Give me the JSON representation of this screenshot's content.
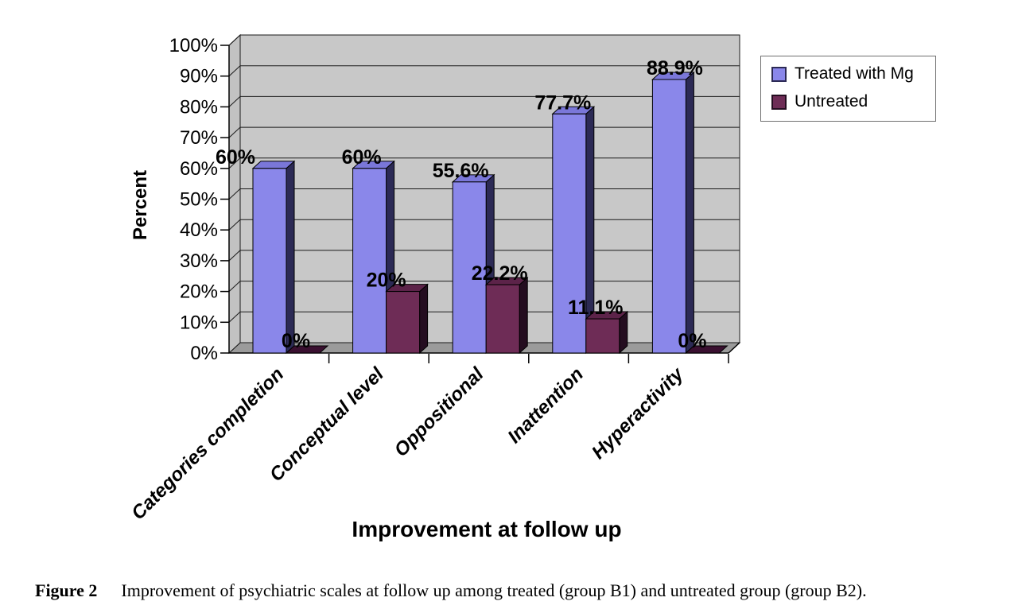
{
  "figure_caption": {
    "label": "Figure 2",
    "text": "Improvement of psychiatric scales at follow up among treated (group B1) and untreated group (group B2)."
  },
  "chart_data": {
    "type": "bar",
    "style_3d": true,
    "title": "",
    "xlabel": "Improvement at follow up",
    "ylabel": "Percent",
    "categories": [
      "Categories completion",
      "Conceptual level",
      "Oppositional",
      "Inattention",
      "Hyperactivity"
    ],
    "series": [
      {
        "name": "Treated with Mg",
        "values": [
          60,
          60,
          55.6,
          77.7,
          88.9
        ],
        "labels": [
          "60%",
          "60%",
          "55.6%",
          "77.7%",
          "88.9%"
        ],
        "front_color": "#8a87ea",
        "top_color": "#7a77d9",
        "side_color": "#2c2a55",
        "label_dx": [
          -43,
          -10,
          -11,
          -8,
          7
        ]
      },
      {
        "name": "Untreated",
        "values": [
          0,
          20,
          22.2,
          11.1,
          0
        ],
        "labels": [
          "0%",
          "20%",
          "22.2%",
          "11.1%",
          "0%"
        ],
        "front_color": "#6e2c56",
        "top_color": "#5c2349",
        "side_color": "#240d20",
        "label_dx": [
          -9,
          -21,
          -4,
          -9,
          -13
        ]
      }
    ],
    "ylim": [
      0,
      100
    ],
    "ytick_step": 10,
    "ytick_labels": [
      "0%",
      "10%",
      "20%",
      "30%",
      "40%",
      "50%",
      "60%",
      "70%",
      "80%",
      "90%",
      "100%"
    ],
    "grid": true,
    "legend_position": "top-right",
    "colors": {
      "back_wall": "#c8c8c8",
      "side_wall": "#c2c2c2",
      "floor": "#9b9b9b",
      "gridline": "#1a1a1a",
      "axis": "#000000",
      "zero_bar": "#3a1030",
      "background": "#ffffff"
    }
  }
}
